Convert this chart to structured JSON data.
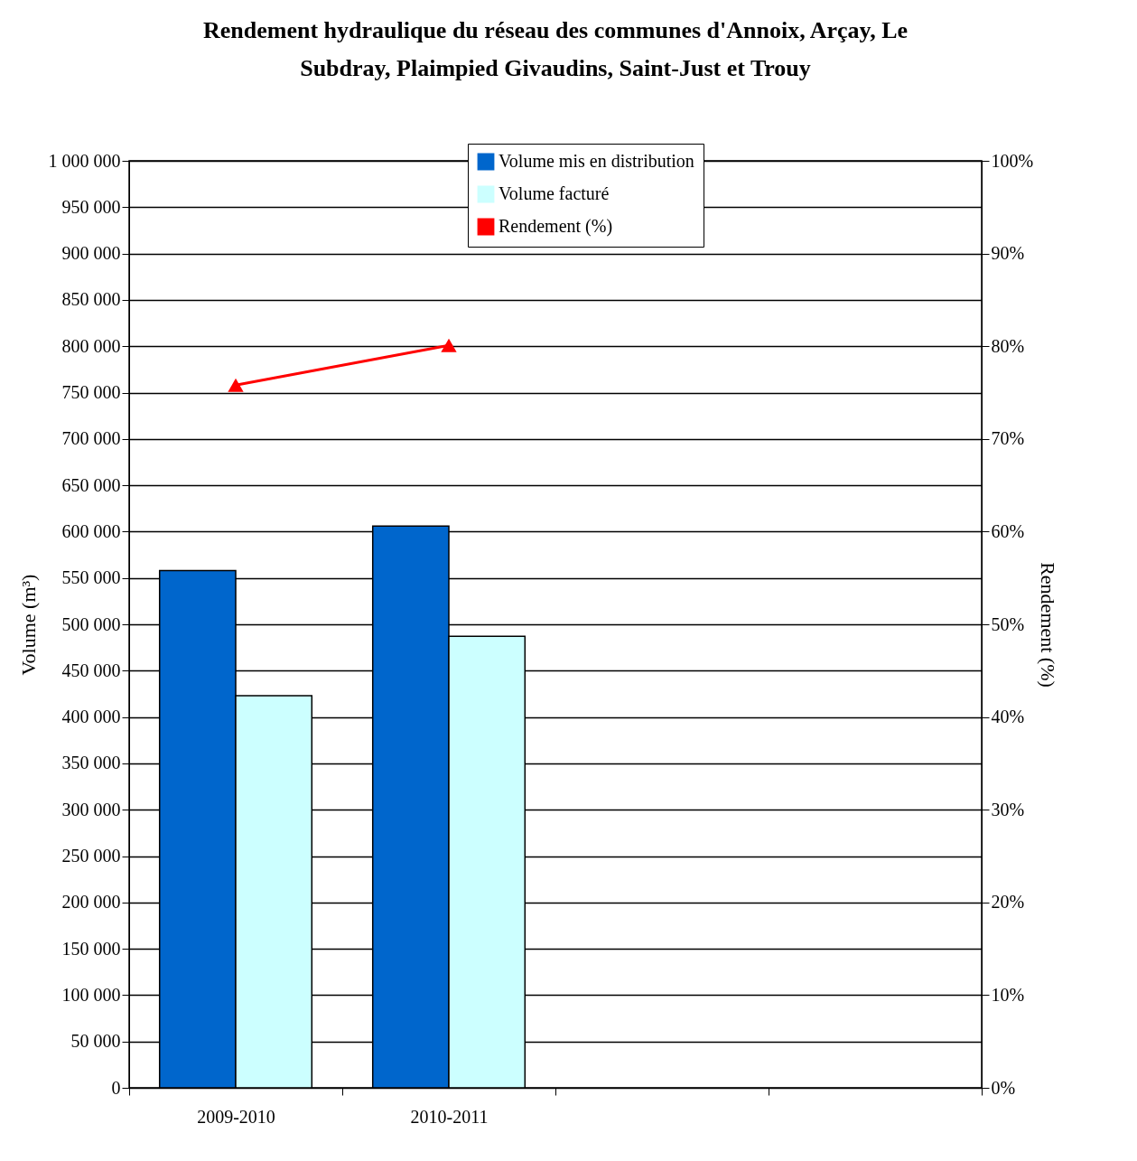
{
  "chart_data": {
    "type": "bar",
    "title": "Rendement hydraulique du réseau des communes d'Annoix, Arçay, Le Subdray, Plaimpied Givaudins, Saint-Just et Trouy",
    "ylabel": "Volume (m³)",
    "y2label": "Rendement (%)",
    "categories": [
      "2009-2010",
      "2010-2011",
      null,
      null
    ],
    "series": [
      {
        "name": "Volume mis en distribution",
        "color": "#0066cc",
        "values": [
          558000,
          606000,
          null,
          null
        ]
      },
      {
        "name": "Volume facturé",
        "color": "#ccffff",
        "values": [
          423000,
          487000,
          null,
          null
        ]
      },
      {
        "name": "Rendement (%)",
        "color": "#ff0000",
        "type": "line",
        "axis": "y2",
        "values": [
          75.8,
          80.1,
          null,
          null
        ]
      }
    ],
    "ylim": [
      0,
      1000000
    ],
    "yticks": [
      0,
      {
        "value": 50000,
        "label": "50 000"
      },
      {
        "value": 100000,
        "label": "100 000"
      },
      {
        "value": 150000,
        "label": "150 000"
      },
      {
        "value": 200000,
        "label": "200 000"
      },
      {
        "value": 250000,
        "label": "250 000"
      },
      {
        "value": 300000,
        "label": "300 000"
      },
      {
        "value": 350000,
        "label": "350 000"
      },
      {
        "value": 400000,
        "label": "400 000"
      },
      {
        "value": 450000,
        "label": "450 000"
      },
      {
        "value": 500000,
        "label": "500 000"
      },
      {
        "value": 550000,
        "label": "550 000"
      },
      {
        "value": 600000,
        "label": "600 000"
      },
      {
        "value": 650000,
        "label": "650 000"
      },
      {
        "value": 700000,
        "label": "700 000"
      },
      {
        "value": 750000,
        "label": "750 000"
      },
      {
        "value": 800000,
        "label": "800 000"
      },
      {
        "value": 850000,
        "label": "850 000"
      },
      {
        "value": 900000,
        "label": "900 000"
      },
      {
        "value": 950000,
        "label": "950 000"
      },
      {
        "value": 1000000,
        "label": "1 000 000"
      }
    ],
    "y2lim": [
      0,
      100
    ],
    "y2ticks": [
      {
        "value": 0,
        "label": "0%"
      },
      {
        "value": 10,
        "label": "10%"
      },
      {
        "value": 20,
        "label": "20%"
      },
      {
        "value": 30,
        "label": "30%"
      },
      {
        "value": 40,
        "label": "40%"
      },
      {
        "value": 50,
        "label": "50%"
      },
      {
        "value": 60,
        "label": "60%"
      },
      {
        "value": 70,
        "label": "70%"
      },
      {
        "value": 80,
        "label": "80%"
      },
      {
        "value": 90,
        "label": "90%"
      },
      {
        "value": 100,
        "label": "100%"
      }
    ],
    "grid": "y",
    "legend": "top",
    "marker": "triangle",
    "line_style": "solid"
  }
}
